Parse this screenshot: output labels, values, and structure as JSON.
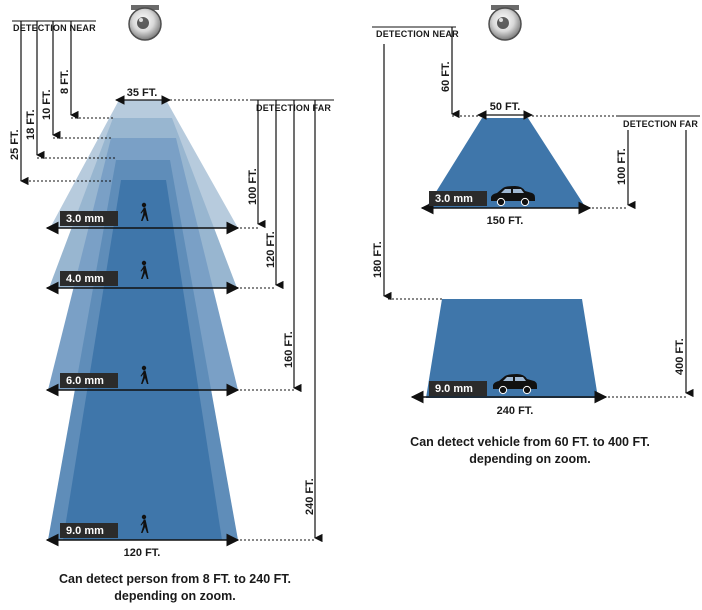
{
  "left_panel": {
    "detection_near_label": "DETECTION NEAR",
    "detection_far_label": "DETECTION FAR",
    "near_distances": [
      "25 FT.",
      "18 FT.",
      "10 FT.",
      "8 FT."
    ],
    "top_width_label": "35 FT.",
    "far_distances": [
      "100 FT.",
      "120 FT.",
      "160 FT.",
      "240 FT."
    ],
    "lens_chips": [
      "3.0 mm",
      "4.0 mm",
      "6.0 mm",
      "9.0 mm"
    ],
    "bottom_width_label": "120 FT.",
    "caption_line1": "Can detect person from 8 FT. to 240 FT.",
    "caption_line2": "depending on zoom."
  },
  "right_panel": {
    "detection_near_label": "DETECTION NEAR",
    "detection_far_label": "DETECTION FAR",
    "near_distance_small": "60 FT.",
    "top_width_small": "50 FT.",
    "far_distance_small": "100 FT.",
    "chip_small": "3.0 mm",
    "bottom_width_small": "150 FT.",
    "near_distance_large": "180 FT.",
    "far_distance_large": "400 FT.",
    "chip_large": "9.0 mm",
    "bottom_width_large": "240 FT.",
    "caption_line1": "Can detect vehicle from 60 FT. to 400 FT.",
    "caption_line2": "depending on zoom."
  },
  "colors": {
    "beam_lightest": "#b7cbdd",
    "beam_light": "#98b6d0",
    "beam_mid": "#7aa0c6",
    "beam_deep": "#5f8db9",
    "beam_core": "#3f76aa",
    "chip_bg": "#2b2b2b",
    "line": "#111111"
  },
  "icons": [
    "dome-camera-icon",
    "person-icon",
    "car-icon"
  ]
}
